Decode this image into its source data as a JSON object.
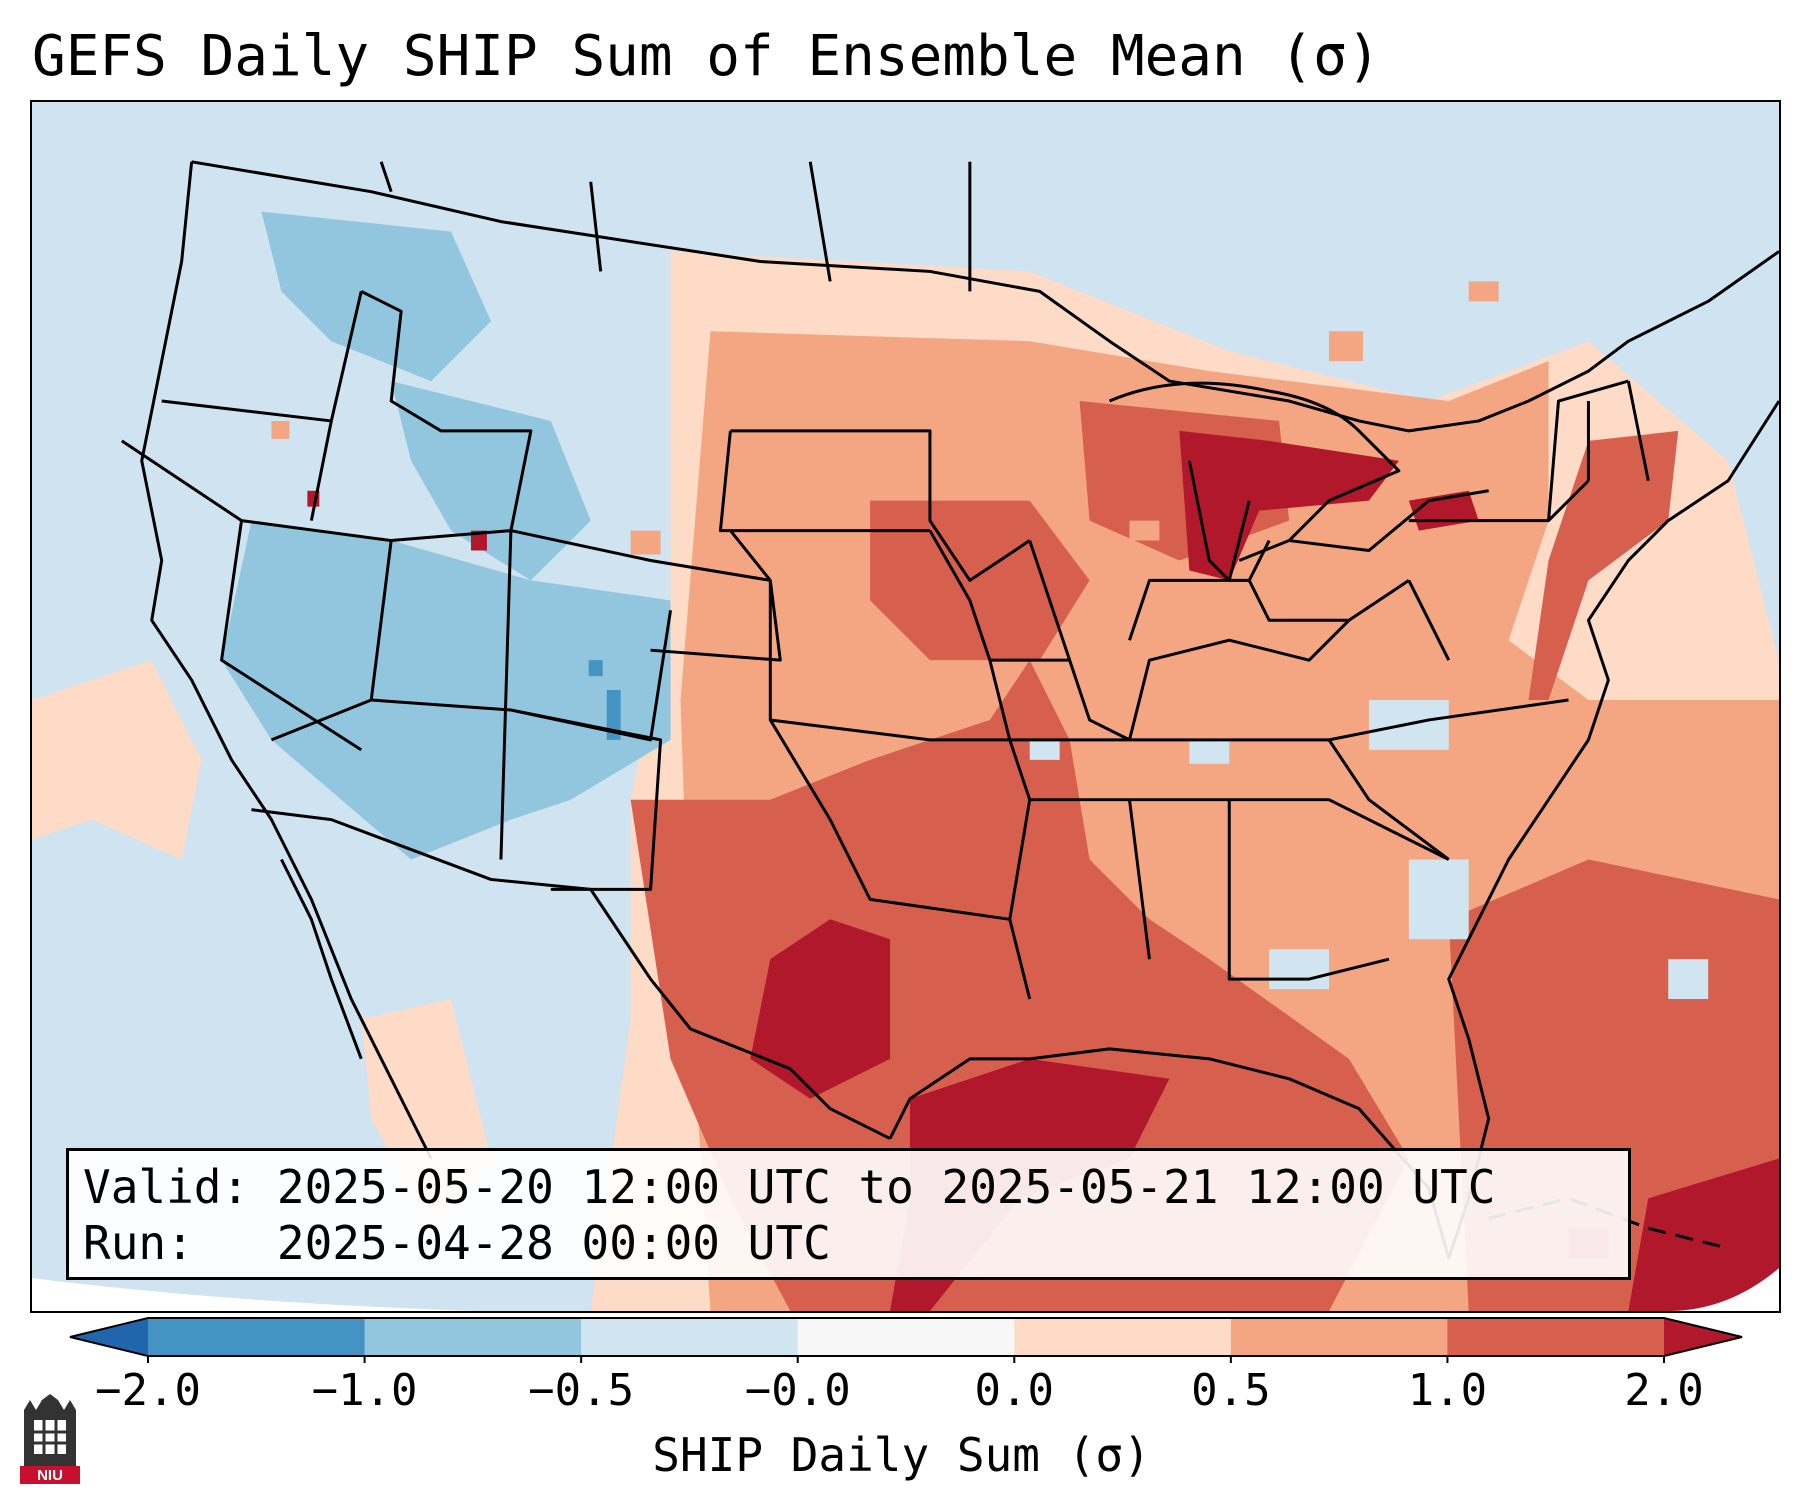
{
  "title": "GEFS Daily SHIP Sum of Ensemble Mean (σ)",
  "info": {
    "valid_label": "Valid:",
    "valid_value": "2025-05-20 12:00 UTC to 2025-05-21 12:00 UTC",
    "run_label": "Run:",
    "run_value": "2025-04-28 00:00 UTC"
  },
  "colorbar": {
    "label": "SHIP Daily Sum (σ)",
    "ticks": [
      "−2.0",
      "−1.0",
      "−0.5",
      "−0.0",
      "0.0",
      "0.5",
      "1.0",
      "2.0"
    ],
    "colors": [
      "#4393c3",
      "#92c5de",
      "#d1e5f0",
      "#f7f7f7",
      "#fddbc7",
      "#f4a582",
      "#d6604d",
      "#b2182b"
    ]
  },
  "logo": {
    "name": "niu-logo",
    "text": "NIU"
  }
}
